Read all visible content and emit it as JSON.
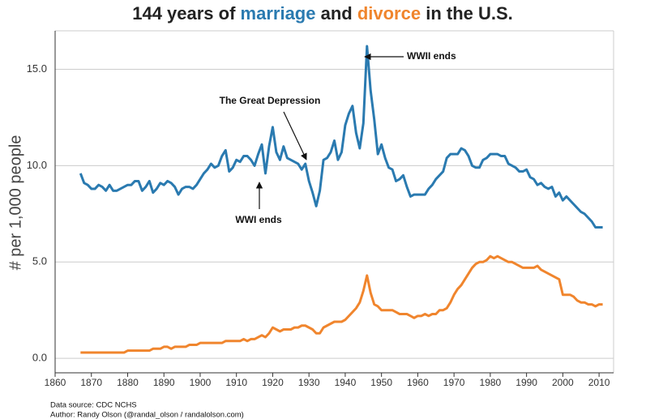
{
  "chart_data": {
    "type": "line",
    "title": {
      "before": "144 years of ",
      "middle": " and ",
      "after": " in the U.S."
    },
    "y_label": "# per 1,000 people",
    "annotations": [
      "WWII ends",
      "The Great Depression",
      "WWI ends"
    ],
    "source": [
      "Data source: CDC NCHS",
      "Author: Randy Olson (@randal_olson / randalolson.com)"
    ],
    "x": [
      1867,
      1868,
      1869,
      1870,
      1871,
      1872,
      1873,
      1874,
      1875,
      1876,
      1877,
      1878,
      1879,
      1880,
      1881,
      1882,
      1883,
      1884,
      1885,
      1886,
      1887,
      1888,
      1889,
      1890,
      1891,
      1892,
      1893,
      1894,
      1895,
      1896,
      1897,
      1898,
      1899,
      1900,
      1901,
      1902,
      1903,
      1904,
      1905,
      1906,
      1907,
      1908,
      1909,
      1910,
      1911,
      1912,
      1913,
      1914,
      1915,
      1916,
      1917,
      1918,
      1919,
      1920,
      1921,
      1922,
      1923,
      1924,
      1925,
      1926,
      1927,
      1928,
      1929,
      1930,
      1931,
      1932,
      1933,
      1934,
      1935,
      1936,
      1937,
      1938,
      1939,
      1940,
      1941,
      1942,
      1943,
      1944,
      1945,
      1946,
      1947,
      1948,
      1949,
      1950,
      1951,
      1952,
      1953,
      1954,
      1955,
      1956,
      1957,
      1958,
      1959,
      1960,
      1961,
      1962,
      1963,
      1964,
      1965,
      1966,
      1967,
      1968,
      1969,
      1970,
      1971,
      1972,
      1973,
      1974,
      1975,
      1976,
      1977,
      1978,
      1979,
      1980,
      1981,
      1982,
      1983,
      1984,
      1985,
      1986,
      1987,
      1988,
      1989,
      1990,
      1991,
      1992,
      1993,
      1994,
      1995,
      1996,
      1997,
      1998,
      1999,
      2000,
      2001,
      2002,
      2003,
      2004,
      2005,
      2006,
      2007,
      2008,
      2009,
      2010,
      2011
    ],
    "series": [
      {
        "name": "marriage",
        "color": "#2a7ab0",
        "values": [
          9.6,
          9.1,
          9.0,
          8.8,
          8.8,
          9.0,
          8.9,
          8.7,
          9.0,
          8.7,
          8.7,
          8.8,
          8.9,
          9.0,
          9.0,
          9.2,
          9.2,
          8.7,
          8.9,
          9.2,
          8.6,
          8.8,
          9.1,
          9.0,
          9.2,
          9.1,
          8.9,
          8.5,
          8.8,
          8.9,
          8.9,
          8.8,
          9.0,
          9.3,
          9.6,
          9.8,
          10.1,
          9.9,
          10.0,
          10.5,
          10.8,
          9.7,
          9.9,
          10.3,
          10.2,
          10.5,
          10.5,
          10.3,
          10.0,
          10.6,
          11.1,
          9.6,
          11.0,
          12.0,
          10.7,
          10.3,
          11.0,
          10.4,
          10.3,
          10.2,
          10.1,
          9.8,
          10.1,
          9.2,
          8.6,
          7.9,
          8.7,
          10.3,
          10.4,
          10.7,
          11.3,
          10.3,
          10.7,
          12.1,
          12.7,
          13.1,
          11.7,
          10.9,
          12.2,
          16.2,
          13.9,
          12.4,
          10.6,
          11.1,
          10.4,
          9.9,
          9.8,
          9.2,
          9.3,
          9.5,
          8.9,
          8.4,
          8.5,
          8.5,
          8.5,
          8.5,
          8.8,
          9.0,
          9.3,
          9.5,
          9.7,
          10.4,
          10.6,
          10.6,
          10.6,
          10.9,
          10.8,
          10.5,
          10.0,
          9.9,
          9.9,
          10.3,
          10.4,
          10.6,
          10.6,
          10.6,
          10.5,
          10.5,
          10.1,
          10.0,
          9.9,
          9.7,
          9.7,
          9.8,
          9.4,
          9.3,
          9.0,
          9.1,
          8.9,
          8.8,
          8.9,
          8.4,
          8.6,
          8.2,
          8.4,
          8.2,
          8.0,
          7.8,
          7.6,
          7.5,
          7.3,
          7.1,
          6.8,
          6.8,
          6.8
        ]
      },
      {
        "name": "divorce",
        "color": "#f0852d",
        "values": [
          0.3,
          0.3,
          0.3,
          0.3,
          0.3,
          0.3,
          0.3,
          0.3,
          0.3,
          0.3,
          0.3,
          0.3,
          0.3,
          0.4,
          0.4,
          0.4,
          0.4,
          0.4,
          0.4,
          0.4,
          0.5,
          0.5,
          0.5,
          0.6,
          0.6,
          0.5,
          0.6,
          0.6,
          0.6,
          0.6,
          0.7,
          0.7,
          0.7,
          0.8,
          0.8,
          0.8,
          0.8,
          0.8,
          0.8,
          0.8,
          0.9,
          0.9,
          0.9,
          0.9,
          0.9,
          1.0,
          0.9,
          1.0,
          1.0,
          1.1,
          1.2,
          1.1,
          1.3,
          1.6,
          1.5,
          1.4,
          1.5,
          1.5,
          1.5,
          1.6,
          1.6,
          1.7,
          1.7,
          1.6,
          1.5,
          1.3,
          1.3,
          1.6,
          1.7,
          1.8,
          1.9,
          1.9,
          1.9,
          2.0,
          2.2,
          2.4,
          2.6,
          2.9,
          3.5,
          4.3,
          3.4,
          2.8,
          2.7,
          2.5,
          2.5,
          2.5,
          2.5,
          2.4,
          2.3,
          2.3,
          2.3,
          2.2,
          2.1,
          2.2,
          2.2,
          2.3,
          2.2,
          2.3,
          2.3,
          2.5,
          2.5,
          2.6,
          2.9,
          3.3,
          3.6,
          3.8,
          4.1,
          4.4,
          4.7,
          4.9,
          5.0,
          5.0,
          5.1,
          5.3,
          5.2,
          5.3,
          5.2,
          5.1,
          5.0,
          5.0,
          4.9,
          4.8,
          4.7,
          4.7,
          4.7,
          4.7,
          4.8,
          4.6,
          4.5,
          4.4,
          4.3,
          4.2,
          4.1,
          3.3,
          3.3,
          3.3,
          3.2,
          3.0,
          2.9,
          2.9,
          2.8,
          2.8,
          2.7,
          2.8,
          2.8
        ]
      }
    ],
    "xlim": [
      1860,
      2014
    ],
    "ylim": [
      -0.75,
      17
    ],
    "xticks": [
      1860,
      1870,
      1880,
      1890,
      1900,
      1910,
      1920,
      1930,
      1940,
      1950,
      1960,
      1970,
      1980,
      1990,
      2000,
      2010
    ],
    "yticks": [
      {
        "value": 0,
        "label": "0.0"
      },
      {
        "value": 5,
        "label": "5.0"
      },
      {
        "value": 10,
        "label": "10.0"
      },
      {
        "value": 15,
        "label": "15.0"
      }
    ],
    "grid": true
  }
}
